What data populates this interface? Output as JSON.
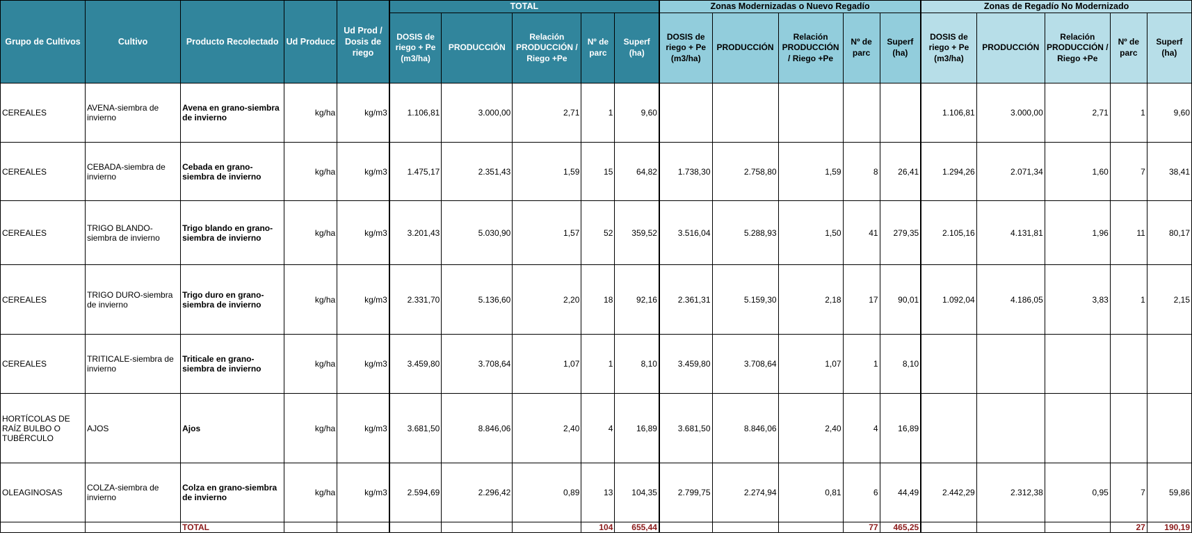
{
  "groups": {
    "total": "TOTAL",
    "modern": "Zonas Modernizadas o Nuevo Regadío",
    "nomodern": "Zonas de Regadío No Modernizado"
  },
  "headers": {
    "grupo": "Grupo de Cultivos",
    "cultivo": "Cultivo",
    "producto": "Producto Recolectado",
    "ud_producc": "Ud Producc",
    "ud_prod_dosis": "Ud Prod / Dosis de riego",
    "dosis": "DOSIS de riego + Pe (m3/ha)",
    "produccion": "PRODUCCIÓN",
    "relacion": "Relación PRODUCCIÓN / Riego +Pe",
    "nparc": "Nº de parc",
    "superf": "Superf (ha)"
  },
  "rows": [
    {
      "grupo": "CEREALES",
      "cultivo": "AVENA-siembra de invierno",
      "producto": "Avena en grano-siembra de invierno",
      "ud": "kg/ha",
      "udd": "kg/m3",
      "t": [
        "1.106,81",
        "3.000,00",
        "2,71",
        "1",
        "9,60"
      ],
      "m": [
        "",
        "",
        "",
        "",
        ""
      ],
      "n": [
        "1.106,81",
        "3.000,00",
        "2,71",
        "1",
        "9,60"
      ]
    },
    {
      "grupo": "CEREALES",
      "cultivo": "CEBADA-siembra de invierno",
      "producto": "Cebada en grano-siembra de invierno",
      "ud": "kg/ha",
      "udd": "kg/m3",
      "t": [
        "1.475,17",
        "2.351,43",
        "1,59",
        "15",
        "64,82"
      ],
      "m": [
        "1.738,30",
        "2.758,80",
        "1,59",
        "8",
        "26,41"
      ],
      "n": [
        "1.294,26",
        "2.071,34",
        "1,60",
        "7",
        "38,41"
      ]
    },
    {
      "grupo": "CEREALES",
      "cultivo": "TRIGO BLANDO-siembra de invierno",
      "producto": "Trigo blando en grano-siembra de invierno",
      "ud": "kg/ha",
      "udd": "kg/m3",
      "t": [
        "3.201,43",
        "5.030,90",
        "1,57",
        "52",
        "359,52"
      ],
      "m": [
        "3.516,04",
        "5.288,93",
        "1,50",
        "41",
        "279,35"
      ],
      "n": [
        "2.105,16",
        "4.131,81",
        "1,96",
        "11",
        "80,17"
      ]
    },
    {
      "grupo": "CEREALES",
      "cultivo": "TRIGO DURO-siembra de invierno",
      "producto": "Trigo duro en grano-siembra de invierno",
      "ud": "kg/ha",
      "udd": "kg/m3",
      "t": [
        "2.331,70",
        "5.136,60",
        "2,20",
        "18",
        "92,16"
      ],
      "m": [
        "2.361,31",
        "5.159,30",
        "2,18",
        "17",
        "90,01"
      ],
      "n": [
        "1.092,04",
        "4.186,05",
        "3,83",
        "1",
        "2,15"
      ]
    },
    {
      "grupo": "CEREALES",
      "cultivo": "TRITICALE-siembra de invierno",
      "producto": "Triticale en grano-siembra de invierno",
      "ud": "kg/ha",
      "udd": "kg/m3",
      "t": [
        "3.459,80",
        "3.708,64",
        "1,07",
        "1",
        "8,10"
      ],
      "m": [
        "3.459,80",
        "3.708,64",
        "1,07",
        "1",
        "8,10"
      ],
      "n": [
        "",
        "",
        "",
        "",
        ""
      ]
    },
    {
      "grupo": "HORTÍCOLAS DE RAÍZ BULBO O TUBÉRCULO",
      "cultivo": "AJOS",
      "producto": "Ajos",
      "ud": "kg/ha",
      "udd": "kg/m3",
      "t": [
        "3.681,50",
        "8.846,06",
        "2,40",
        "4",
        "16,89"
      ],
      "m": [
        "3.681,50",
        "8.846,06",
        "2,40",
        "4",
        "16,89"
      ],
      "n": [
        "",
        "",
        "",
        "",
        ""
      ]
    },
    {
      "grupo": "OLEAGINOSAS",
      "cultivo": "COLZA-siembra de invierno",
      "producto": "Colza en grano-siembra de invierno",
      "ud": "kg/ha",
      "udd": "kg/m3",
      "t": [
        "2.594,69",
        "2.296,42",
        "0,89",
        "13",
        "104,35"
      ],
      "m": [
        "2.799,75",
        "2.274,94",
        "0,81",
        "6",
        "44,49"
      ],
      "n": [
        "2.442,29",
        "2.312,38",
        "0,95",
        "7",
        "59,86"
      ]
    }
  ],
  "total_row": {
    "label": "TOTAL",
    "t_nparc": "104",
    "t_superf": "655,44",
    "m_nparc": "77",
    "m_superf": "465,25",
    "n_nparc": "27",
    "n_superf": "190,19"
  }
}
